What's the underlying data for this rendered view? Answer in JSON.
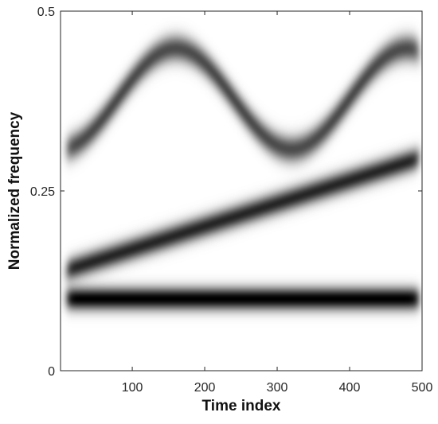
{
  "chart_data": {
    "type": "heatmap",
    "title": "",
    "xlabel": "Time index",
    "ylabel": "Normalized frequency",
    "xlim": [
      1,
      500
    ],
    "ylim": [
      0,
      0.5
    ],
    "x_ticks": [
      100,
      200,
      300,
      400,
      500
    ],
    "x_tick_labels": [
      "100",
      "200",
      "300",
      "400",
      "500"
    ],
    "y_ticks": [
      0,
      0.25,
      0.5
    ],
    "y_tick_labels": [
      "0",
      "0.25",
      "0.5"
    ],
    "colormap": "gray (white = 0, black = maximum)",
    "grid": false,
    "legend": "none",
    "components": [
      {
        "kind": "constant",
        "frequency": 0.1,
        "t_range": [
          10,
          495
        ],
        "intensity": 1.0,
        "width": 0.011
      },
      {
        "kind": "linear_chirp",
        "f_start": 0.14,
        "f_end": 0.295,
        "t_range": [
          10,
          495
        ],
        "intensity": 0.85,
        "width": 0.011
      },
      {
        "kind": "sinusoidal_fm",
        "f_center": 0.378,
        "f_amplitude": 0.07,
        "period": 320,
        "peak_times": [
          160,
          480
        ],
        "trough_times": [
          0,
          320
        ],
        "t_range": [
          10,
          495
        ],
        "intensity": 0.7,
        "width": 0.013
      }
    ]
  }
}
